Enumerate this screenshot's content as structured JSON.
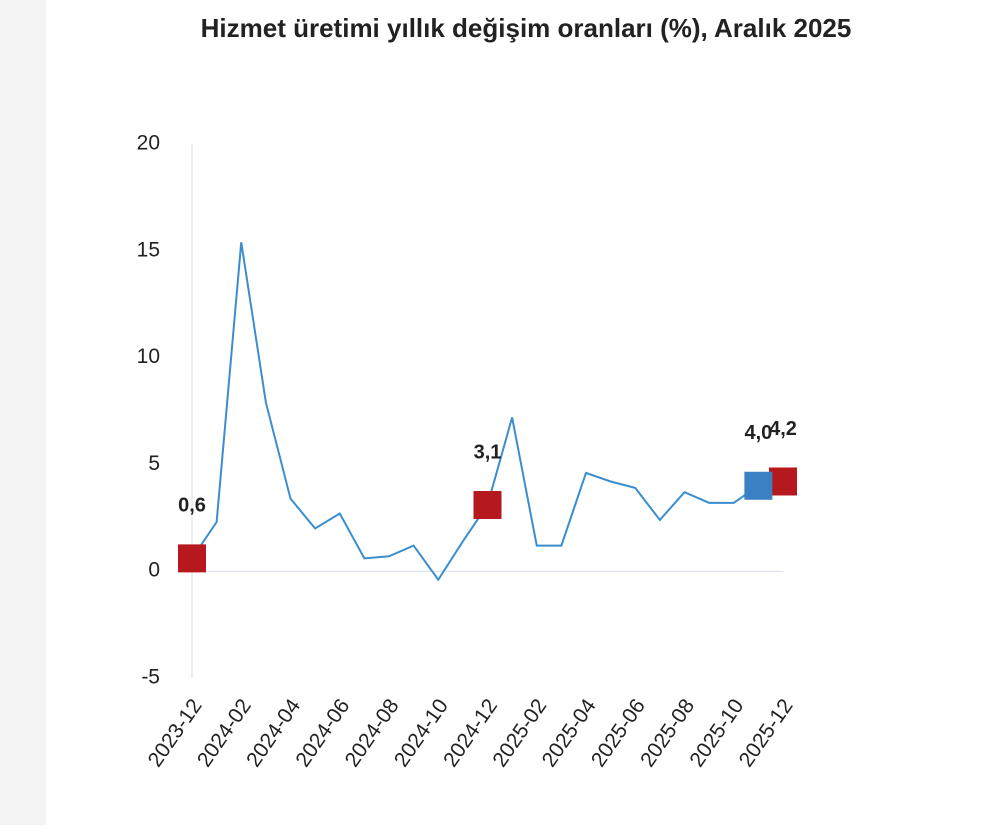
{
  "chart_data": {
    "type": "line",
    "title": "Hizmet üretimi yıllık değişim oranları (%), Aralık 2025",
    "categories": [
      "2023-12",
      null,
      "2024-02",
      null,
      "2024-04",
      null,
      "2024-06",
      null,
      "2024-08",
      null,
      "2024-10",
      null,
      "2024-12",
      null,
      "2025-02",
      null,
      "2025-04",
      null,
      "2025-06",
      null,
      "2025-08",
      null,
      "2025-10",
      null,
      "2025-12"
    ],
    "series": [
      {
        "color": "#3a8ecf",
        "values": [
          0.6,
          2.3,
          15.4,
          7.9,
          3.4,
          2.0,
          2.7,
          0.6,
          0.7,
          1.2,
          -0.4,
          1.4,
          3.1,
          7.2,
          1.2,
          1.2,
          4.6,
          4.2,
          3.9,
          2.4,
          3.7,
          3.2,
          3.2,
          4.0,
          4.2
        ]
      },
      {
        "color": "#b5191e",
        "marker": "square",
        "values": [
          0.6,
          null,
          null,
          null,
          null,
          null,
          null,
          null,
          null,
          null,
          null,
          null,
          3.1,
          null,
          null,
          null,
          null,
          null,
          null,
          null,
          null,
          null,
          null,
          null,
          4.2
        ],
        "value_labels": [
          "0,6",
          null,
          null,
          null,
          null,
          null,
          null,
          null,
          null,
          null,
          null,
          null,
          "3,1",
          null,
          null,
          null,
          null,
          null,
          null,
          null,
          null,
          null,
          null,
          null,
          "4,2"
        ]
      },
      {
        "color": "#3a80c2",
        "marker": "square",
        "values": [
          null,
          null,
          null,
          null,
          null,
          null,
          null,
          null,
          null,
          null,
          null,
          null,
          null,
          null,
          null,
          null,
          null,
          null,
          null,
          null,
          null,
          null,
          null,
          4.0,
          null
        ],
        "value_labels": [
          null,
          null,
          null,
          null,
          null,
          null,
          null,
          null,
          null,
          null,
          null,
          null,
          null,
          null,
          null,
          null,
          null,
          null,
          null,
          null,
          null,
          null,
          null,
          "4,0",
          null
        ]
      }
    ],
    "ylim": [
      -5,
      20
    ],
    "yticks": [
      -5,
      0,
      5,
      10,
      15,
      20
    ]
  }
}
